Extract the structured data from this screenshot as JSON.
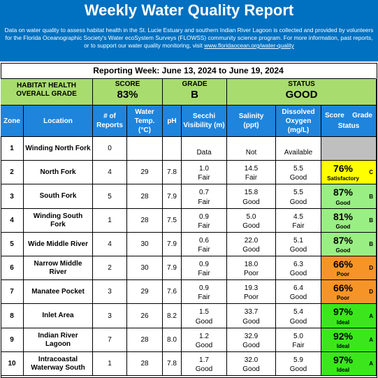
{
  "title": "Weekly Water Quality Report",
  "intro": {
    "text": "Data on water quality to assess habitat health in the St. Lucie Estuary and southern Indian River Lagoon is collected and provided by volunteers for the Florida Oceanographic Society's Water ecoSystem Surveys (FLOWSS) community science program.  For more information, past reports, or to support our water quality monitoring, visit",
    "link": "www.floridaocean.org/water-quality"
  },
  "reporting_week": "Reporting Week: June 13, 2024 to June 19, 2024",
  "summary": {
    "label": "HABITAT HEALTH OVERALL GRADE",
    "score_label": "SCORE",
    "score": "83%",
    "grade_label": "GRADE",
    "grade": "B",
    "status_label": "STATUS",
    "status": "GOOD"
  },
  "columns": {
    "zone": "Zone",
    "location": "Location",
    "reports": "# of Reports",
    "temp": "Water Temp. (°C)",
    "ph": "pH",
    "secchi": "Secchi Visibility (m)",
    "salinity": "Salinity (ppt)",
    "oxygen": "Dissolved Oxygen (mg/L)",
    "score": "Score",
    "grade": "Grade",
    "status": "Status"
  },
  "colors": {
    "banner": "#0070c0",
    "header": "#1f84dc",
    "summary": "#a9dc6f",
    "good": "#99ef83",
    "ideal": "#3be71c",
    "satisfactory": "#ffff00",
    "poor": "#f79428",
    "no_data": "#bfbfbf"
  },
  "rows": [
    {
      "zone": "1",
      "location": "Winding North Fork",
      "reports": "0",
      "temp": "",
      "ph": "",
      "secchi": "",
      "secchi_rating": "Data",
      "salinity": "",
      "salinity_rating": "Not",
      "oxygen": "",
      "oxygen_rating": "Available",
      "score": "",
      "rating": "",
      "grade": "",
      "color": "#bfbfbf"
    },
    {
      "zone": "2",
      "location": "North Fork",
      "reports": "4",
      "temp": "29",
      "ph": "7.8",
      "secchi": "1.0",
      "secchi_rating": "Fair",
      "salinity": "14.5",
      "salinity_rating": "Fair",
      "oxygen": "5.5",
      "oxygen_rating": "Good",
      "score": "76%",
      "rating": "Satisfactory",
      "grade": "C",
      "color": "#ffff00"
    },
    {
      "zone": "3",
      "location": "South Fork",
      "reports": "5",
      "temp": "28",
      "ph": "7.9",
      "secchi": "0.7",
      "secchi_rating": "Fair",
      "salinity": "15.8",
      "salinity_rating": "Good",
      "oxygen": "5.5",
      "oxygen_rating": "Good",
      "score": "87%",
      "rating": "Good",
      "grade": "B",
      "color": "#99ef83"
    },
    {
      "zone": "4",
      "location": "Winding South Fork",
      "reports": "1",
      "temp": "28",
      "ph": "7.5",
      "secchi": "0.9",
      "secchi_rating": "Fair",
      "salinity": "5.0",
      "salinity_rating": "Good",
      "oxygen": "4.5",
      "oxygen_rating": "Fair",
      "score": "81%",
      "rating": "Good",
      "grade": "B",
      "color": "#99ef83"
    },
    {
      "zone": "5",
      "location": "Wide Middle River",
      "reports": "4",
      "temp": "30",
      "ph": "7.9",
      "secchi": "0.6",
      "secchi_rating": "Fair",
      "salinity": "22.0",
      "salinity_rating": "Good",
      "oxygen": "5.1",
      "oxygen_rating": "Good",
      "score": "87%",
      "rating": "Good",
      "grade": "B",
      "color": "#99ef83"
    },
    {
      "zone": "6",
      "location": "Narrow Middle River",
      "reports": "2",
      "temp": "30",
      "ph": "7.9",
      "secchi": "0.9",
      "secchi_rating": "Fair",
      "salinity": "18.0",
      "salinity_rating": "Poor",
      "oxygen": "6.3",
      "oxygen_rating": "Good",
      "score": "66%",
      "rating": "Poor",
      "grade": "D",
      "color": "#f79428"
    },
    {
      "zone": "7",
      "location": "Manatee Pocket",
      "reports": "3",
      "temp": "29",
      "ph": "7.6",
      "secchi": "0.9",
      "secchi_rating": "Fair",
      "salinity": "19.3",
      "salinity_rating": "Poor",
      "oxygen": "6.4",
      "oxygen_rating": "Good",
      "score": "66%",
      "rating": "Poor",
      "grade": "D",
      "color": "#f79428"
    },
    {
      "zone": "8",
      "location": "Inlet Area",
      "reports": "3",
      "temp": "26",
      "ph": "8.2",
      "secchi": "1.5",
      "secchi_rating": "Good",
      "salinity": "33.7",
      "salinity_rating": "Good",
      "oxygen": "5.4",
      "oxygen_rating": "Good",
      "score": "97%",
      "rating": "Ideal",
      "grade": "A",
      "color": "#3be71c"
    },
    {
      "zone": "9",
      "location": "Indian River Lagoon",
      "reports": "7",
      "temp": "28",
      "ph": "8.0",
      "secchi": "1.2",
      "secchi_rating": "Good",
      "salinity": "32.9",
      "salinity_rating": "Good",
      "oxygen": "5.0",
      "oxygen_rating": "Fair",
      "score": "92%",
      "rating": "Ideal",
      "grade": "A",
      "color": "#3be71c"
    },
    {
      "zone": "10",
      "location": "Intracoastal Waterway South",
      "reports": "1",
      "temp": "28",
      "ph": "7.8",
      "secchi": "1.7",
      "secchi_rating": "Good",
      "salinity": "32.0",
      "salinity_rating": "Good",
      "oxygen": "5.9",
      "oxygen_rating": "Good",
      "score": "97%",
      "rating": "Ideal",
      "grade": "A",
      "color": "#3be71c"
    }
  ]
}
